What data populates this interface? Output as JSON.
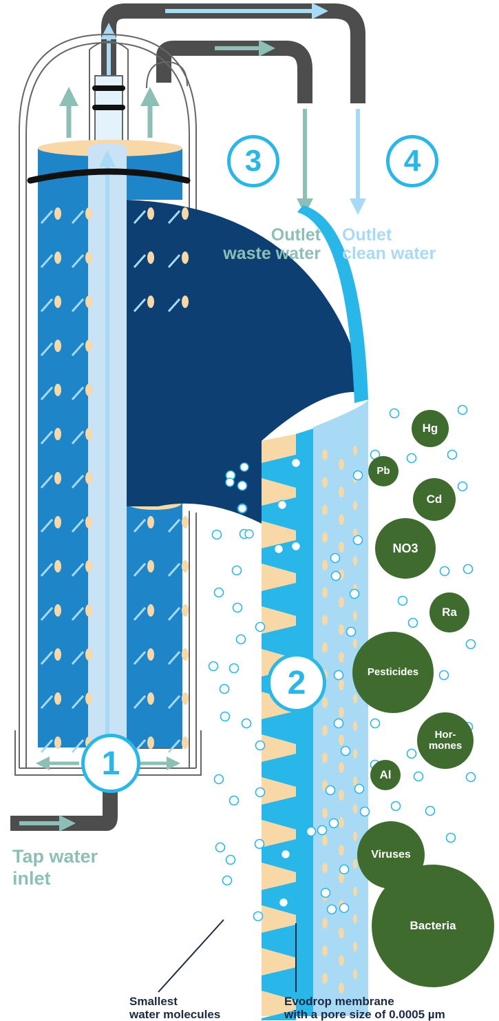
{
  "steps": {
    "step1": "1",
    "step2": "2",
    "step3": "3",
    "step4": "4"
  },
  "labels": {
    "waste_line1": "Outlet",
    "waste_line2": "waste water",
    "clean_line1": "Outlet",
    "clean_line2": "clean water",
    "tap_line1": "Tap water",
    "tap_line2": "inlet",
    "molecules_line1": "Smallest",
    "molecules_line2": "water molecules",
    "membrane_line1": "Evodrop membrane",
    "membrane_line2": "with a pore size of 0.0005 µm"
  },
  "contaminants": [
    "Hg",
    "Pb",
    "Cd",
    "NO3",
    "Ra",
    "Pesticides",
    "Hor-",
    "mones",
    "Al",
    "Viruses",
    "Bacteria"
  ],
  "colors": {
    "green_arrow": "#8dbfb7",
    "light_blue": "#a9daf5",
    "accent_blue": "#29b6e8",
    "membrane_blue": "#1e86c8",
    "dark_navy": "#0e3f73",
    "pipe_gray": "#4d4d4d",
    "pore_beige": "#f7d8a6",
    "contaminant_green": "#3f6b2e",
    "caption_navy": "#1b2a44"
  }
}
